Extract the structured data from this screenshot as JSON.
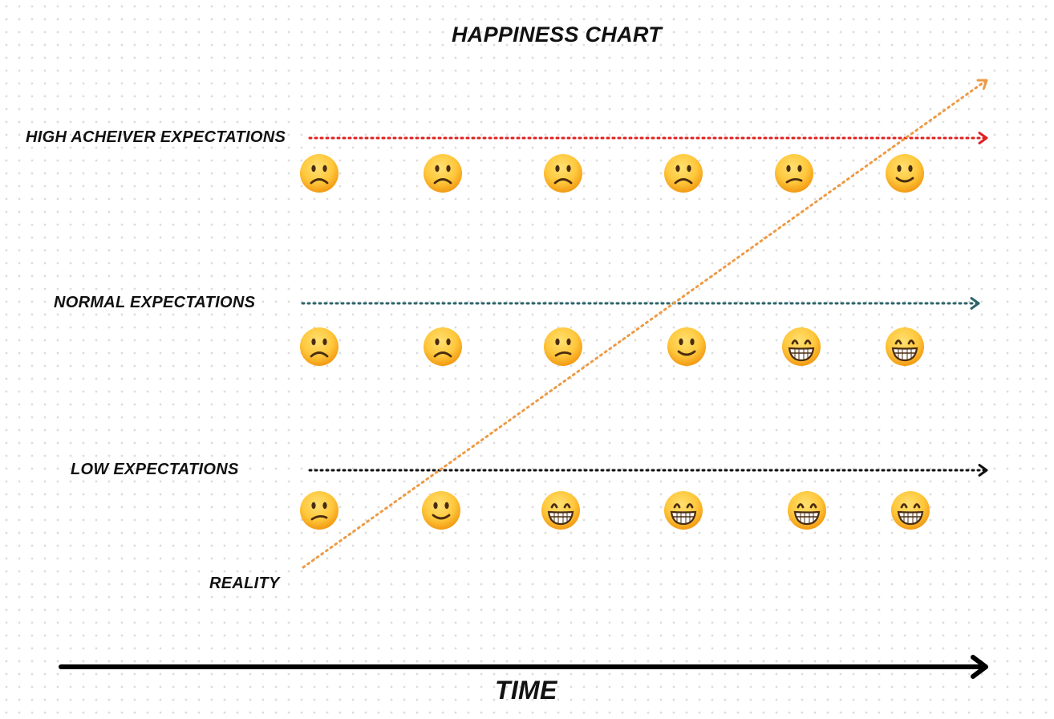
{
  "title": "HAPPINESS CHART",
  "x_axis_label": "TIME",
  "colors": {
    "high": "#e02020",
    "normal": "#2d6468",
    "low": "#111111",
    "reality": "#ee9a45",
    "axis": "#000000",
    "face": "#ffc83d",
    "face_shade": "#f29a12",
    "feature": "#4a2c10"
  },
  "rows": [
    {
      "name": "high",
      "label": "HIGH ACHEIVER EXPECTATIONS",
      "faces": [
        "frowning",
        "frowning",
        "frowning",
        "frowning",
        "confused",
        "slightly-smiling"
      ]
    },
    {
      "name": "normal",
      "label": "NORMAL EXPECTATIONS",
      "faces": [
        "frowning",
        "frowning",
        "confused",
        "slightly-smiling",
        "grinning",
        "grinning"
      ]
    },
    {
      "name": "low",
      "label": "LOW EXPECTATIONS",
      "faces": [
        "confused",
        "slightly-smiling",
        "grinning",
        "grinning",
        "grinning",
        "grinning"
      ]
    }
  ],
  "reality": {
    "label": "REALITY"
  }
}
